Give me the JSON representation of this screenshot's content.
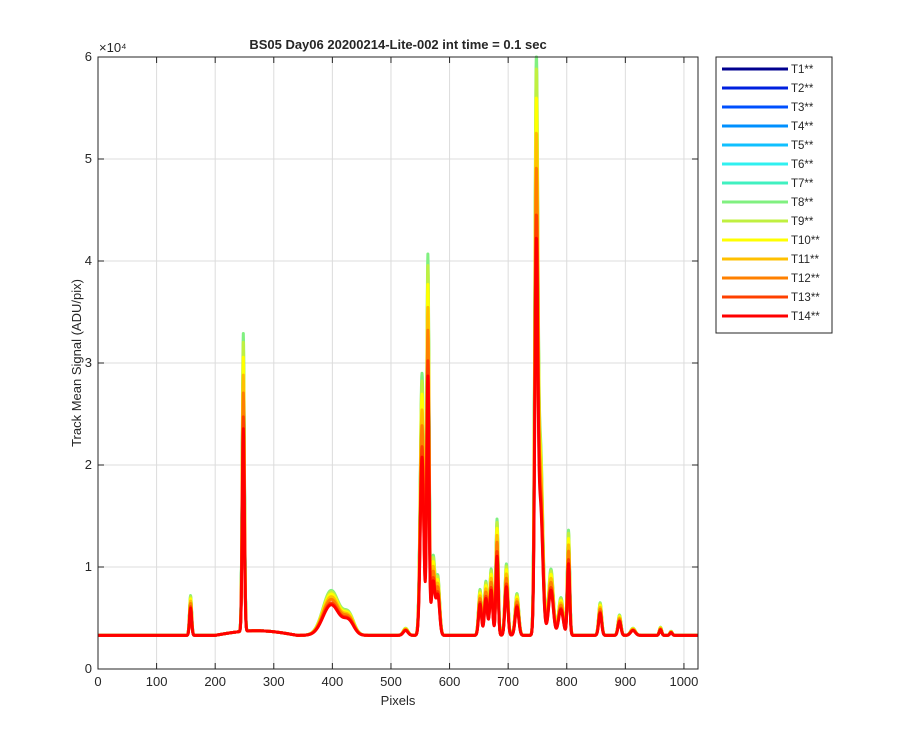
{
  "chart_data": {
    "type": "line",
    "title": "BS05 Day06 20200214-Lite-002 int time = 0.1 sec",
    "xlabel": "Pixels",
    "ylabel": "Track Mean Signal (ADU/pix)",
    "y_exponent_label": "×10⁴",
    "xlim": [
      0,
      1024
    ],
    "ylim": [
      0,
      60000
    ],
    "x_ticks": [
      0,
      100,
      200,
      300,
      400,
      500,
      600,
      700,
      800,
      900,
      1000
    ],
    "x_tick_labels": [
      "0",
      "100",
      "200",
      "300",
      "400",
      "500",
      "600",
      "700",
      "800",
      "900",
      "1000"
    ],
    "y_ticks": [
      0,
      10000,
      20000,
      30000,
      40000,
      50000,
      60000
    ],
    "y_tick_labels": [
      "0",
      "1",
      "2",
      "3",
      "4",
      "5",
      "6"
    ],
    "grid": true,
    "legend_position": "outside-top-right",
    "baseline": 3300,
    "series": [
      {
        "name": "T1**",
        "color": "#00008f",
        "scale": 0.87
      },
      {
        "name": "T2**",
        "color": "#0020df",
        "scale": 0.88
      },
      {
        "name": "T3**",
        "color": "#0050ff",
        "scale": 0.89
      },
      {
        "name": "T4**",
        "color": "#0090ff",
        "scale": 0.9
      },
      {
        "name": "T5**",
        "color": "#10c0ff",
        "scale": 0.91
      },
      {
        "name": "T6**",
        "color": "#30f0f0",
        "scale": 0.92
      },
      {
        "name": "T7**",
        "color": "#40f0c0",
        "scale": 0.93
      },
      {
        "name": "T8**",
        "color": "#80f080",
        "scale": 1.0
      },
      {
        "name": "T9**",
        "color": "#c0f040",
        "scale": 0.97
      },
      {
        "name": "T10**",
        "color": "#ffff00",
        "scale": 0.92
      },
      {
        "name": "T11**",
        "color": "#ffc000",
        "scale": 0.86
      },
      {
        "name": "T12**",
        "color": "#ff8000",
        "scale": 0.8
      },
      {
        "name": "T13**",
        "color": "#ff4000",
        "scale": 0.72
      },
      {
        "name": "T14**",
        "color": "#ff0000",
        "scale": 0.68
      }
    ],
    "peaks": [
      {
        "x": 158,
        "y": 7200,
        "width": 1.8
      },
      {
        "x": 248,
        "y": 32500,
        "width": 1.8
      },
      {
        "x": 398,
        "y": 7700,
        "width": 14
      },
      {
        "x": 428,
        "y": 5200,
        "width": 9
      },
      {
        "x": 525,
        "y": 4000,
        "width": 4
      },
      {
        "x": 553,
        "y": 29000,
        "width": 3
      },
      {
        "x": 563,
        "y": 40500,
        "width": 2
      },
      {
        "x": 572,
        "y": 11000,
        "width": 3
      },
      {
        "x": 580,
        "y": 9000,
        "width": 3
      },
      {
        "x": 652,
        "y": 7800,
        "width": 2.5
      },
      {
        "x": 662,
        "y": 8600,
        "width": 2.5
      },
      {
        "x": 671,
        "y": 9800,
        "width": 2.5
      },
      {
        "x": 681,
        "y": 14700,
        "width": 2
      },
      {
        "x": 697,
        "y": 10300,
        "width": 2.5
      },
      {
        "x": 715,
        "y": 7400,
        "width": 3
      },
      {
        "x": 748,
        "y": 56500,
        "width": 2.5
      },
      {
        "x": 755,
        "y": 22000,
        "width": 4
      },
      {
        "x": 773,
        "y": 9800,
        "width": 4
      },
      {
        "x": 790,
        "y": 7000,
        "width": 4
      },
      {
        "x": 803,
        "y": 13600,
        "width": 2
      },
      {
        "x": 857,
        "y": 6500,
        "width": 2.5
      },
      {
        "x": 890,
        "y": 5300,
        "width": 2.5
      },
      {
        "x": 913,
        "y": 4000,
        "width": 4
      },
      {
        "x": 960,
        "y": 4100,
        "width": 2
      },
      {
        "x": 978,
        "y": 3700,
        "width": 2
      }
    ]
  }
}
